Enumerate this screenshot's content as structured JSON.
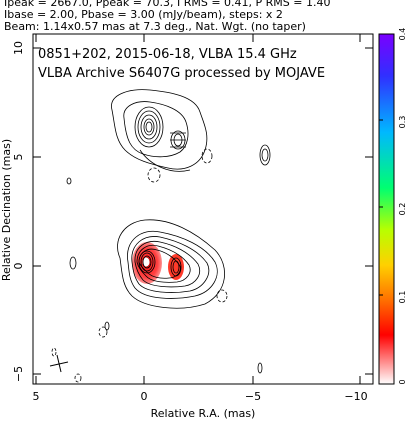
{
  "header": {
    "line1": "Ipeak = 2667.0, Ppeak = 70.3, I RMS = 0.41, P RMS = 1.40",
    "line2": "Ibase = 2.00, Pbase = 3.00 (mJy/beam), steps: x 2",
    "line3": "Beam: 1.14x0.57 mas at 7.3 deg., Nat. Wgt. (no taper)"
  },
  "plot": {
    "title_line1": "0851+202, 2015-06-18, VLBA 15.4 GHz",
    "title_line2": "VLBA Archive S6407G processed by MOJAVE",
    "xlabel": "Relative R.A. (mas)",
    "ylabel": "Relative Decination (mas)",
    "x_ticks": [
      "5",
      "0",
      "−5",
      "−10"
    ],
    "y_ticks": [
      "10",
      "5",
      "0",
      "−5"
    ]
  },
  "colorbar": {
    "ticks": [
      "0.4",
      "0.3",
      "0.2",
      "0.1",
      "0"
    ],
    "colors": [
      "#8b00ff",
      "#2a2aff",
      "#00c0ff",
      "#00ff60",
      "#c8ff00",
      "#ffe000",
      "#ff8000",
      "#ff0000",
      "#ffffff"
    ]
  }
}
